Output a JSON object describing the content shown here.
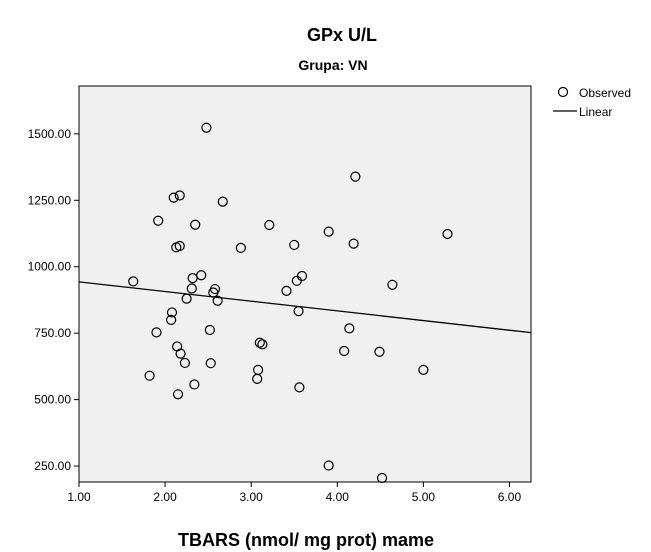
{
  "chart_data": {
    "type": "scatter",
    "title": "GPx U/L",
    "subtitle": "Grupa: VN",
    "xlabel": "TBARS (nmol/ mg prot) mame",
    "ylabel": "",
    "xlim": [
      1.0,
      6.25
    ],
    "ylim": [
      190,
      1680
    ],
    "x_ticks": [
      "1.00",
      "2.00",
      "3.00",
      "4.00",
      "5.00",
      "6.00"
    ],
    "y_ticks": [
      "250.00",
      "500.00",
      "750.00",
      "1000.00",
      "1250.00",
      "1500.00"
    ],
    "grid": false,
    "plot_background": "#f0f0f0",
    "legend_position": "top-right",
    "legend": [
      {
        "label": "Observed",
        "symbol": "open-circle"
      },
      {
        "label": "Linear",
        "symbol": "line"
      }
    ],
    "series": [
      {
        "name": "Observed",
        "points": [
          [
            1.63,
            945
          ],
          [
            1.82,
            590
          ],
          [
            1.9,
            753
          ],
          [
            1.92,
            1173
          ],
          [
            2.07,
            800
          ],
          [
            2.08,
            828
          ],
          [
            2.1,
            1260
          ],
          [
            2.13,
            1073
          ],
          [
            2.14,
            700
          ],
          [
            2.15,
            520
          ],
          [
            2.17,
            1078
          ],
          [
            2.17,
            1268
          ],
          [
            2.18,
            673
          ],
          [
            2.23,
            638
          ],
          [
            2.25,
            880
          ],
          [
            2.31,
            918
          ],
          [
            2.32,
            957
          ],
          [
            2.34,
            557
          ],
          [
            2.35,
            1158
          ],
          [
            2.42,
            968
          ],
          [
            2.48,
            1523
          ],
          [
            2.52,
            762
          ],
          [
            2.53,
            637
          ],
          [
            2.56,
            903
          ],
          [
            2.58,
            916
          ],
          [
            2.61,
            872
          ],
          [
            2.67,
            1245
          ],
          [
            2.88,
            1071
          ],
          [
            3.07,
            578
          ],
          [
            3.08,
            612
          ],
          [
            3.1,
            714
          ],
          [
            3.13,
            708
          ],
          [
            3.21,
            1157
          ],
          [
            3.41,
            909
          ],
          [
            3.5,
            1082
          ],
          [
            3.53,
            947
          ],
          [
            3.55,
            833
          ],
          [
            3.56,
            546
          ],
          [
            3.59,
            965
          ],
          [
            3.9,
            1132
          ],
          [
            3.9,
            252
          ],
          [
            4.08,
            683
          ],
          [
            4.14,
            768
          ],
          [
            4.19,
            1087
          ],
          [
            4.21,
            1339
          ],
          [
            4.49,
            680
          ],
          [
            4.52,
            205
          ],
          [
            4.64,
            932
          ],
          [
            5.0,
            612
          ],
          [
            5.28,
            1123
          ]
        ]
      }
    ],
    "fit_line": {
      "name": "Linear",
      "points": [
        [
          1.0,
          943
        ],
        [
          6.25,
          752
        ]
      ]
    }
  }
}
